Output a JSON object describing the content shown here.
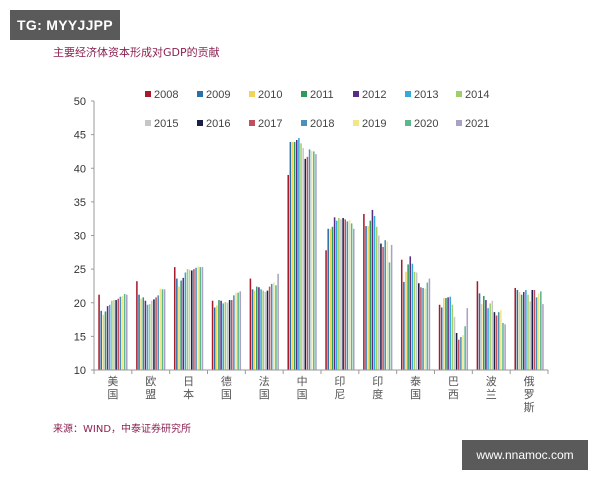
{
  "watermark_top": "TG: MYYJJPP",
  "watermark_bottom": "www.nnamoc.com",
  "title": "主要经济体资本形成对GDP的贡献",
  "source": "来源：WIND，中泰证券研究所",
  "chart_data": {
    "type": "bar",
    "title": "主要经济体资本形成对GDP的贡献",
    "xlabel": "",
    "ylabel": "",
    "ylim": [
      10,
      50
    ],
    "yticks": [
      10,
      15,
      20,
      25,
      30,
      35,
      40,
      45,
      50
    ],
    "grid": false,
    "legend_position": "top",
    "categories": [
      "美国",
      "欧盟",
      "日本",
      "德国",
      "法国",
      "中国",
      "印尼",
      "印度",
      "泰国",
      "巴西",
      "波兰",
      "俄罗斯"
    ],
    "series": [
      {
        "name": "2008",
        "color": "#a8192a",
        "values": [
          21.2,
          23.2,
          25.3,
          20.3,
          23.6,
          39.0,
          27.8,
          33.2,
          26.4,
          19.7,
          23.2,
          22.2
        ]
      },
      {
        "name": "2009",
        "color": "#2a6fa6",
        "values": [
          18.8,
          21.2,
          23.6,
          19.3,
          22.0,
          43.9,
          31.0,
          31.4,
          23.1,
          19.3,
          21.4,
          21.9
        ]
      },
      {
        "name": "2010",
        "color": "#f2d45c",
        "values": [
          18.2,
          20.6,
          22.4,
          19.6,
          21.8,
          43.9,
          31.0,
          31.4,
          24.6,
          20.7,
          19.8,
          21.6
        ]
      },
      {
        "name": "2011",
        "color": "#2e9a5e",
        "values": [
          18.7,
          20.8,
          23.3,
          20.4,
          22.4,
          43.9,
          31.3,
          32.2,
          25.7,
          20.7,
          21.0,
          21.2
        ]
      },
      {
        "name": "2012",
        "color": "#5b2a86",
        "values": [
          19.5,
          20.3,
          23.7,
          20.3,
          22.3,
          44.2,
          32.7,
          33.8,
          26.9,
          20.8,
          20.4,
          21.6
        ]
      },
      {
        "name": "2013",
        "color": "#35a9d8",
        "values": [
          19.7,
          19.7,
          24.5,
          19.9,
          22.0,
          44.5,
          32.2,
          32.9,
          25.8,
          20.9,
          19.2,
          21.9
        ]
      },
      {
        "name": "2014",
        "color": "#9fcf6a",
        "values": [
          20.3,
          19.8,
          25.0,
          20.1,
          21.8,
          43.7,
          32.6,
          31.3,
          24.6,
          19.7,
          19.9,
          21.2
        ]
      },
      {
        "name": "2015",
        "color": "#c6c6c6",
        "values": [
          20.4,
          20.3,
          24.9,
          20.0,
          21.6,
          43.0,
          32.4,
          30.0,
          24.5,
          17.9,
          20.3,
          20.2
        ]
      },
      {
        "name": "2016",
        "color": "#1a1f4a",
        "values": [
          20.4,
          20.5,
          24.8,
          20.4,
          21.8,
          41.4,
          32.6,
          28.8,
          22.9,
          15.5,
          18.6,
          21.9
        ]
      },
      {
        "name": "2017",
        "color": "#c0505e",
        "values": [
          20.6,
          20.8,
          25.0,
          20.4,
          22.4,
          41.7,
          32.4,
          28.3,
          22.3,
          14.5,
          18.1,
          21.9
        ]
      },
      {
        "name": "2018",
        "color": "#4a90b8",
        "values": [
          20.9,
          21.1,
          25.2,
          21.1,
          22.8,
          42.8,
          32.1,
          29.3,
          22.2,
          14.9,
          18.6,
          20.8
        ]
      },
      {
        "name": "2019",
        "color": "#f0e68a",
        "values": [
          21.0,
          22.1,
          25.4,
          21.5,
          23.0,
          42.6,
          32.3,
          29.1,
          22.1,
          15.2,
          18.9,
          21.4
        ]
      },
      {
        "name": "2020",
        "color": "#5cb88a",
        "values": [
          21.3,
          22.0,
          25.3,
          21.5,
          22.6,
          42.5,
          31.8,
          26.0,
          23.0,
          16.5,
          17.0,
          21.7
        ]
      },
      {
        "name": "2021",
        "color": "#a9a2c6",
        "values": [
          21.2,
          22.0,
          25.3,
          21.7,
          24.3,
          42.1,
          31.0,
          28.6,
          23.6,
          19.2,
          16.8,
          19.8
        ]
      }
    ]
  }
}
